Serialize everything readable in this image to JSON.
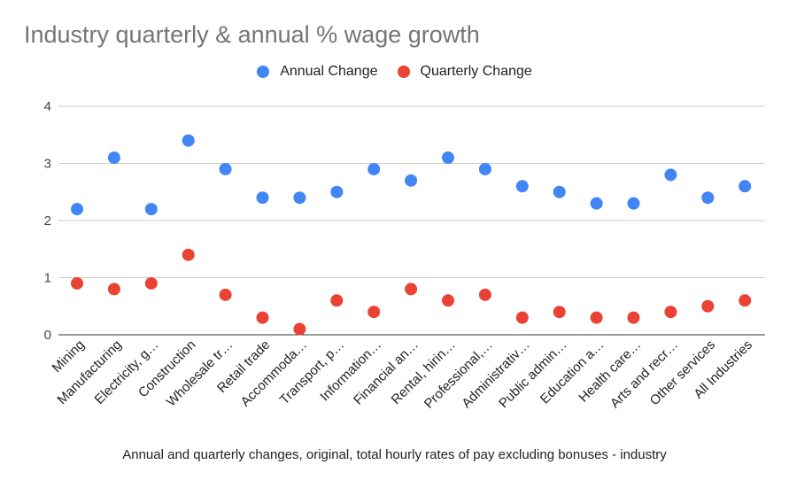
{
  "chart_data": {
    "type": "scatter",
    "title": "Industry quarterly & annual % wage growth",
    "xlabel": "Annual and quarterly changes, original, total hourly rates of pay excluding bonuses - industry",
    "ylabel": "",
    "ylim": [
      0,
      4
    ],
    "yticks": [
      "0",
      "1",
      "2",
      "3",
      "4"
    ],
    "grid": true,
    "legend_position": "top",
    "categories": [
      "Mining",
      "Manufacturing",
      "Electricity, g…",
      "Construction",
      "Wholesale tr…",
      "Retail trade",
      "Accommoda…",
      "Transport, p…",
      "Information…",
      "Financial an…",
      "Rental, hirin…",
      "Professional,…",
      "Administrativ…",
      "Public admin…",
      "Education a…",
      "Health care…",
      "Arts and recr…",
      "Other services",
      "All Industries"
    ],
    "series": [
      {
        "name": "Annual Change",
        "color": "#4285f4",
        "values": [
          2.2,
          3.1,
          2.2,
          3.4,
          2.9,
          2.4,
          2.4,
          2.5,
          2.9,
          2.7,
          3.1,
          2.9,
          2.6,
          2.5,
          2.3,
          2.3,
          2.8,
          2.4,
          2.6
        ]
      },
      {
        "name": "Quarterly Change",
        "color": "#ea4335",
        "values": [
          0.9,
          0.8,
          0.9,
          1.4,
          0.7,
          0.3,
          0.1,
          0.6,
          0.4,
          0.8,
          0.6,
          0.7,
          0.3,
          0.4,
          0.3,
          0.3,
          0.4,
          0.5,
          0.6
        ]
      }
    ]
  }
}
